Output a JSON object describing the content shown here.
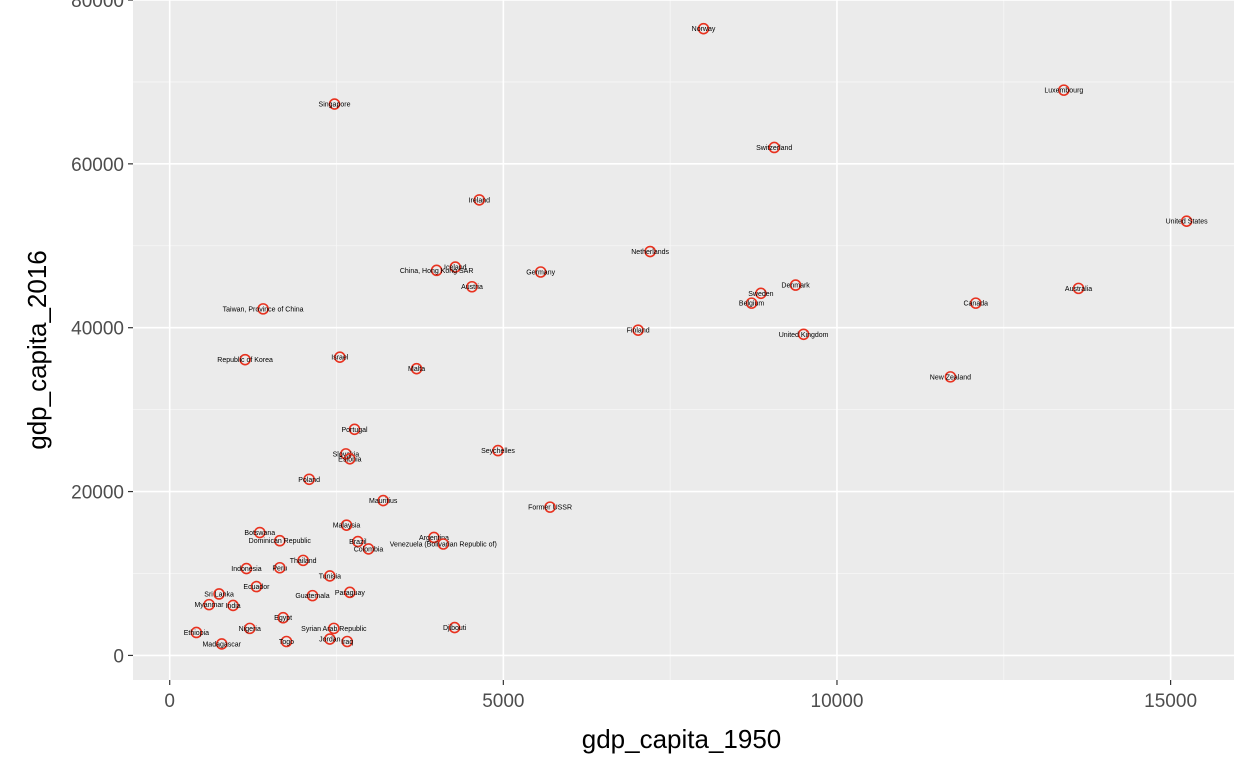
{
  "colors": {
    "panel": "#ebebeb",
    "grid": "#ffffff",
    "point": "#e8321f",
    "text": "#4d4d4d"
  },
  "chart_data": {
    "type": "scatter",
    "title": "",
    "xlabel": "gdp_capita_1950",
    "ylabel": "gdp_capita_2016",
    "xlim": [
      -550,
      15950
    ],
    "ylim": [
      -3000,
      80000
    ],
    "x_ticks": [
      0,
      5000,
      10000,
      15000
    ],
    "y_ticks": [
      0,
      20000,
      40000,
      60000,
      80000
    ],
    "x_tick_labels": [
      "0",
      "5000",
      "10000",
      "15000"
    ],
    "y_tick_labels": [
      "0",
      "20000",
      "40000",
      "60000",
      "80000"
    ],
    "grid": true,
    "legend": "none",
    "points": [
      {
        "x": 8000,
        "y": 76500,
        "label": "Norway"
      },
      {
        "x": 13400,
        "y": 69000,
        "label": "Luxembourg"
      },
      {
        "x": 2470,
        "y": 67300,
        "label": "Singapore"
      },
      {
        "x": 9060,
        "y": 62000,
        "label": "Switzerland"
      },
      {
        "x": 4640,
        "y": 55600,
        "label": "Ireland"
      },
      {
        "x": 15240,
        "y": 53000,
        "label": "United States"
      },
      {
        "x": 7200,
        "y": 49300,
        "label": "Netherlands"
      },
      {
        "x": 4280,
        "y": 47400,
        "label": "Iceland"
      },
      {
        "x": 4000,
        "y": 47000,
        "label": "China, Hong Kong SAR"
      },
      {
        "x": 5560,
        "y": 46800,
        "label": "Germany"
      },
      {
        "x": 4530,
        "y": 45000,
        "label": "Austria"
      },
      {
        "x": 9380,
        "y": 45200,
        "label": "Denmark"
      },
      {
        "x": 13620,
        "y": 44800,
        "label": "Australia"
      },
      {
        "x": 8860,
        "y": 44200,
        "label": "Sweden"
      },
      {
        "x": 8720,
        "y": 43000,
        "label": "Belgium"
      },
      {
        "x": 12080,
        "y": 43000,
        "label": "Canada"
      },
      {
        "x": 1400,
        "y": 42300,
        "label": "Taiwan, Province of China"
      },
      {
        "x": 7020,
        "y": 39700,
        "label": "Finland"
      },
      {
        "x": 9500,
        "y": 39200,
        "label": "United Kingdom"
      },
      {
        "x": 2550,
        "y": 36400,
        "label": "Israel"
      },
      {
        "x": 1130,
        "y": 36100,
        "label": "Republic of Korea"
      },
      {
        "x": 3700,
        "y": 35000,
        "label": "Malta"
      },
      {
        "x": 11700,
        "y": 34000,
        "label": "New Zealand"
      },
      {
        "x": 2770,
        "y": 27600,
        "label": "Portugal"
      },
      {
        "x": 4920,
        "y": 25000,
        "label": "Seychelles"
      },
      {
        "x": 2640,
        "y": 24600,
        "label": "Slovakia"
      },
      {
        "x": 2700,
        "y": 24000,
        "label": "Estonia"
      },
      {
        "x": 2090,
        "y": 21500,
        "label": "Poland"
      },
      {
        "x": 3200,
        "y": 18900,
        "label": "Mauritius"
      },
      {
        "x": 5700,
        "y": 18100,
        "label": "Former USSR"
      },
      {
        "x": 2650,
        "y": 15900,
        "label": "Malaysia"
      },
      {
        "x": 1350,
        "y": 15000,
        "label": "Botswana"
      },
      {
        "x": 3960,
        "y": 14400,
        "label": "Argentina"
      },
      {
        "x": 4100,
        "y": 13600,
        "label": "Venezuela (Bolivarian Republic of)"
      },
      {
        "x": 1650,
        "y": 14000,
        "label": "Dominican Republic"
      },
      {
        "x": 2820,
        "y": 13900,
        "label": "Brazil"
      },
      {
        "x": 2980,
        "y": 13000,
        "label": "Colombia"
      },
      {
        "x": 2000,
        "y": 11600,
        "label": "Thailand"
      },
      {
        "x": 1150,
        "y": 10600,
        "label": "Indonesia"
      },
      {
        "x": 1650,
        "y": 10700,
        "label": "Peru"
      },
      {
        "x": 2400,
        "y": 9700,
        "label": "Tunisia"
      },
      {
        "x": 1300,
        "y": 8400,
        "label": "Ecuador"
      },
      {
        "x": 2700,
        "y": 7700,
        "label": "Paraguay"
      },
      {
        "x": 2140,
        "y": 7300,
        "label": "Guatemala"
      },
      {
        "x": 740,
        "y": 7500,
        "label": "Sri Lanka"
      },
      {
        "x": 590,
        "y": 6200,
        "label": "Myanmar"
      },
      {
        "x": 950,
        "y": 6100,
        "label": "India"
      },
      {
        "x": 1700,
        "y": 4600,
        "label": "Egypt"
      },
      {
        "x": 1200,
        "y": 3300,
        "label": "Nigeria"
      },
      {
        "x": 4270,
        "y": 3400,
        "label": "Djibouti"
      },
      {
        "x": 2460,
        "y": 3300,
        "label": "Syrian Arab Republic"
      },
      {
        "x": 2660,
        "y": 1700,
        "label": "Iraq"
      },
      {
        "x": 2400,
        "y": 2000,
        "label": "Jordan"
      },
      {
        "x": 1750,
        "y": 1700,
        "label": "Togo"
      },
      {
        "x": 780,
        "y": 1400,
        "label": "Madagascar"
      },
      {
        "x": 400,
        "y": 2800,
        "label": "Ethiopia"
      }
    ]
  }
}
